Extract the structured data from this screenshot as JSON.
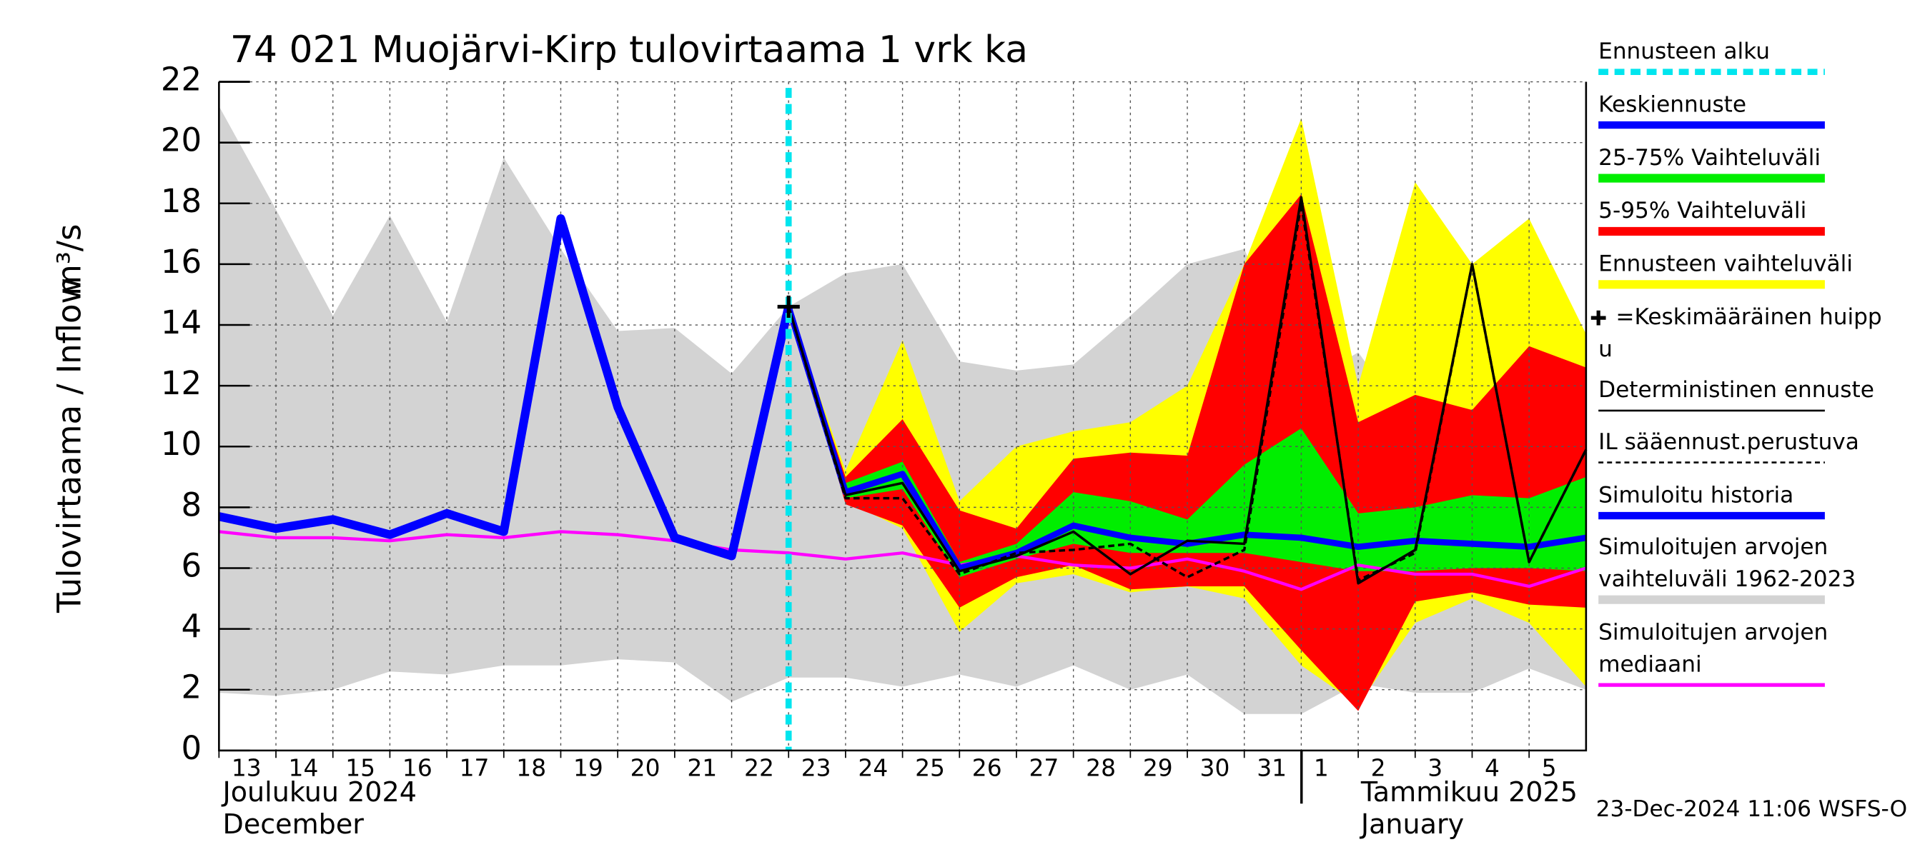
{
  "chart_data": {
    "type": "line",
    "title": "74 021 Muojärvi-Kirp tulovirtaama 1 vrk ka",
    "ylabel": "Tulovirtaama / Inflow",
    "yunit": "m³/s",
    "month_labels": [
      "Joulukuu  2024",
      "December",
      "Tammikuu  2025",
      "January"
    ],
    "footer": "23-Dec-2024 11:06 WSFS-O",
    "x": [
      0,
      1,
      2,
      3,
      4,
      5,
      6,
      7,
      8,
      9,
      10,
      11,
      12,
      13,
      14,
      15,
      16,
      17,
      18,
      19,
      20,
      21,
      22,
      23,
      24
    ],
    "xlim": [
      0,
      24
    ],
    "xticks": [
      {
        "value": 0,
        "label": "13"
      },
      {
        "value": 1,
        "label": "14"
      },
      {
        "value": 2,
        "label": "15"
      },
      {
        "value": 3,
        "label": "16"
      },
      {
        "value": 4,
        "label": "17"
      },
      {
        "value": 5,
        "label": "18"
      },
      {
        "value": 6,
        "label": "19"
      },
      {
        "value": 7,
        "label": "20"
      },
      {
        "value": 8,
        "label": "21"
      },
      {
        "value": 9,
        "label": "22"
      },
      {
        "value": 10,
        "label": "23"
      },
      {
        "value": 11,
        "label": "24"
      },
      {
        "value": 12,
        "label": "25"
      },
      {
        "value": 13,
        "label": "26"
      },
      {
        "value": 14,
        "label": "27"
      },
      {
        "value": 15,
        "label": "28"
      },
      {
        "value": 16,
        "label": "29"
      },
      {
        "value": 17,
        "label": "30"
      },
      {
        "value": 18,
        "label": "31"
      },
      {
        "value": 19,
        "label": "1"
      },
      {
        "value": 20,
        "label": "2"
      },
      {
        "value": 21,
        "label": "3"
      },
      {
        "value": 22,
        "label": "4"
      },
      {
        "value": 23,
        "label": "5"
      }
    ],
    "ylim": [
      0,
      22
    ],
    "yticks": [
      0,
      2,
      4,
      6,
      8,
      10,
      12,
      14,
      16,
      18,
      20,
      22
    ],
    "grid": true,
    "series": [
      {
        "name": [
          "Ennusteen alku"
        ],
        "kind": "vline",
        "color": "#00e5ee",
        "x": 10
      },
      {
        "name": [
          "Keskiennuste"
        ],
        "kind": "line",
        "color": "#0000ff",
        "values": [
          null,
          null,
          null,
          null,
          null,
          null,
          null,
          null,
          null,
          null,
          14.6,
          8.5,
          9.1,
          6.0,
          6.5,
          7.4,
          7.0,
          6.8,
          7.1,
          7.0,
          6.7,
          6.9,
          6.8,
          6.7,
          7.0
        ]
      },
      {
        "name": [
          "25-75% Vaihteluväli"
        ],
        "kind": "band",
        "color": "#00ee00",
        "upper": [
          null,
          null,
          null,
          null,
          null,
          null,
          null,
          null,
          null,
          null,
          14.6,
          8.8,
          9.5,
          6.2,
          6.8,
          8.5,
          8.2,
          7.6,
          9.4,
          10.6,
          7.8,
          8.0,
          8.4,
          8.3,
          9.0
        ],
        "lower": [
          null,
          null,
          null,
          null,
          null,
          null,
          null,
          null,
          null,
          null,
          14.6,
          8.3,
          8.6,
          5.7,
          6.3,
          6.8,
          6.5,
          6.5,
          6.5,
          6.2,
          5.9,
          5.9,
          6.0,
          6.0,
          5.9
        ]
      },
      {
        "name": [
          "5-95% Vaihteluväli"
        ],
        "kind": "band",
        "color": "#ff0000",
        "upper": [
          null,
          null,
          null,
          null,
          null,
          null,
          null,
          null,
          null,
          null,
          14.6,
          9.0,
          10.9,
          7.9,
          7.3,
          9.6,
          9.8,
          9.7,
          16.0,
          18.3,
          10.8,
          11.7,
          11.2,
          13.3,
          12.6
        ],
        "lower": [
          null,
          null,
          null,
          null,
          null,
          null,
          null,
          null,
          null,
          null,
          14.6,
          8.1,
          7.4,
          4.7,
          5.7,
          6.1,
          5.3,
          5.4,
          5.4,
          3.3,
          1.3,
          4.9,
          5.2,
          4.8,
          4.7
        ]
      },
      {
        "name": [
          "Ennusteen vaihteluväli"
        ],
        "kind": "band",
        "color": "#ffff00",
        "upper": [
          null,
          null,
          null,
          null,
          null,
          null,
          null,
          null,
          null,
          null,
          14.6,
          9.2,
          13.5,
          8.2,
          10.0,
          10.5,
          10.8,
          12.0,
          16.0,
          20.8,
          12.0,
          18.7,
          16.0,
          17.5,
          13.7
        ],
        "lower": [
          null,
          null,
          null,
          null,
          null,
          null,
          null,
          null,
          null,
          null,
          14.6,
          8.2,
          7.3,
          3.9,
          5.5,
          5.8,
          5.2,
          5.4,
          5.0,
          2.8,
          1.5,
          4.2,
          5.0,
          4.2,
          2.1
        ]
      },
      {
        "name": [
          "=Keskimääräinen huipp",
          "u"
        ],
        "kind": "marker",
        "color": "#000000",
        "x": 10,
        "y": 14.6
      },
      {
        "name": [
          "Deterministinen ennuste"
        ],
        "kind": "line",
        "color": "#000000",
        "values": [
          null,
          null,
          null,
          null,
          null,
          null,
          null,
          null,
          null,
          null,
          14.6,
          8.4,
          8.8,
          5.9,
          6.4,
          7.2,
          5.8,
          6.9,
          6.8,
          18.2,
          5.5,
          6.6,
          16.0,
          6.2,
          9.9
        ]
      },
      {
        "name": [
          "IL sääennust.perustuva"
        ],
        "kind": "dashed",
        "color": "#000000",
        "values": [
          null,
          null,
          null,
          null,
          null,
          null,
          null,
          null,
          null,
          null,
          14.6,
          8.3,
          8.3,
          5.8,
          6.5,
          6.6,
          6.8,
          5.7,
          6.6,
          18.0,
          5.6,
          6.5,
          16.0,
          6.2,
          9.9
        ]
      },
      {
        "name": [
          "Simuloitu historia"
        ],
        "kind": "line",
        "color": "#0000ff",
        "values": [
          7.7,
          7.3,
          7.6,
          7.1,
          7.8,
          7.2,
          17.5,
          11.3,
          7.0,
          6.4,
          14.6,
          null,
          null,
          null,
          null,
          null,
          null,
          null,
          null,
          null,
          null,
          null,
          null,
          null,
          null
        ]
      },
      {
        "name": [
          "Simuloitujen arvojen",
          "vaihteluväli 1962-2023"
        ],
        "kind": "band",
        "color": "#d3d3d3",
        "upper": [
          21.2,
          17.8,
          14.3,
          17.6,
          14.1,
          19.5,
          16.5,
          13.8,
          13.9,
          12.4,
          14.6,
          15.7,
          16.0,
          12.8,
          12.5,
          12.7,
          14.3,
          16.0,
          16.5,
          12.0,
          13.1,
          10.5,
          13.5,
          13.0,
          10.8
        ],
        "lower": [
          1.9,
          1.8,
          2.0,
          2.6,
          2.5,
          2.8,
          2.8,
          3.0,
          2.9,
          1.6,
          2.4,
          2.4,
          2.1,
          2.5,
          2.1,
          2.8,
          2.0,
          2.5,
          1.2,
          1.2,
          2.2,
          1.9,
          1.9,
          2.7,
          2.0
        ]
      },
      {
        "name": [
          "Simuloitujen arvojen",
          "mediaani"
        ],
        "kind": "line",
        "color": "#ff00ff",
        "values": [
          7.2,
          7.0,
          7.0,
          6.9,
          7.1,
          7.0,
          7.2,
          7.1,
          6.9,
          6.6,
          6.5,
          6.3,
          6.5,
          6.1,
          6.4,
          6.1,
          6.0,
          6.3,
          5.9,
          5.3,
          6.1,
          5.8,
          5.8,
          5.4,
          6.0
        ]
      }
    ]
  }
}
